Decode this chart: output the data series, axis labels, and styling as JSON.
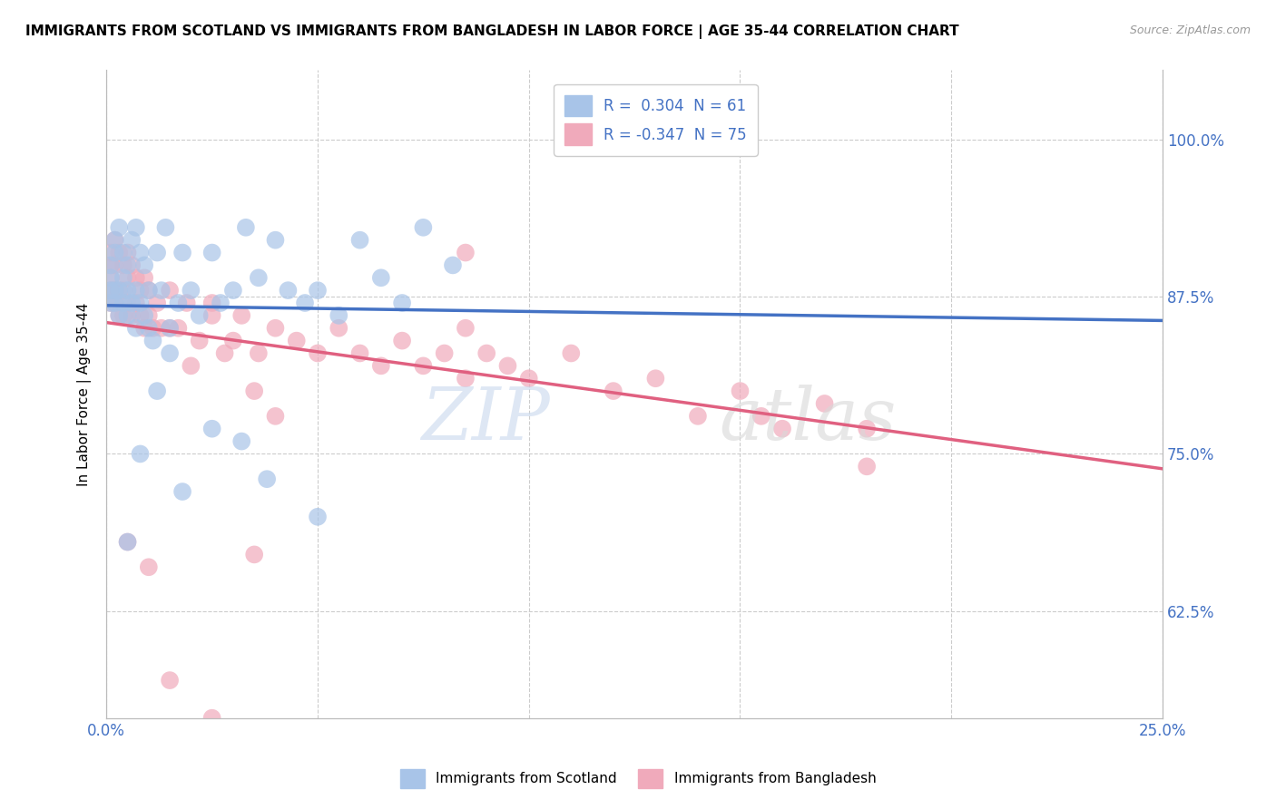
{
  "title": "IMMIGRANTS FROM SCOTLAND VS IMMIGRANTS FROM BANGLADESH IN LABOR FORCE | AGE 35-44 CORRELATION CHART",
  "source": "Source: ZipAtlas.com",
  "ylabel": "In Labor Force | Age 35-44",
  "xlim": [
    0.0,
    0.25
  ],
  "ylim": [
    0.54,
    1.055
  ],
  "xticks": [
    0.0,
    0.05,
    0.1,
    0.15,
    0.2,
    0.25
  ],
  "xticklabels": [
    "0.0%",
    "",
    "",
    "",
    "",
    "25.0%"
  ],
  "yticks": [
    0.625,
    0.75,
    0.875,
    1.0
  ],
  "yticklabels": [
    "62.5%",
    "75.0%",
    "87.5%",
    "100.0%"
  ],
  "r_scotland": 0.304,
  "n_scotland": 61,
  "r_bangladesh": -0.347,
  "n_bangladesh": 75,
  "scotland_color": "#a8c4e8",
  "bangladesh_color": "#f0aabb",
  "scotland_line_color": "#4472c4",
  "bangladesh_line_color": "#e06080",
  "legend_scotland": "Immigrants from Scotland",
  "legend_bangladesh": "Immigrants from Bangladesh",
  "scotland_x": [
    0.001,
    0.001,
    0.001,
    0.001,
    0.002,
    0.002,
    0.002,
    0.002,
    0.003,
    0.003,
    0.003,
    0.004,
    0.004,
    0.004,
    0.005,
    0.005,
    0.005,
    0.006,
    0.006,
    0.007,
    0.007,
    0.007,
    0.008,
    0.008,
    0.009,
    0.009,
    0.01,
    0.01,
    0.011,
    0.012,
    0.013,
    0.014,
    0.015,
    0.017,
    0.018,
    0.02,
    0.022,
    0.025,
    0.027,
    0.03,
    0.033,
    0.036,
    0.04,
    0.043,
    0.047,
    0.05,
    0.055,
    0.06,
    0.065,
    0.07,
    0.075,
    0.082,
    0.032,
    0.018,
    0.012,
    0.008,
    0.005,
    0.015,
    0.025,
    0.038,
    0.05
  ],
  "scotland_y": [
    0.87,
    0.88,
    0.89,
    0.9,
    0.87,
    0.88,
    0.91,
    0.92,
    0.86,
    0.88,
    0.93,
    0.87,
    0.89,
    0.91,
    0.86,
    0.88,
    0.9,
    0.87,
    0.92,
    0.85,
    0.88,
    0.93,
    0.87,
    0.91,
    0.86,
    0.9,
    0.85,
    0.88,
    0.84,
    0.91,
    0.88,
    0.93,
    0.85,
    0.87,
    0.91,
    0.88,
    0.86,
    0.91,
    0.87,
    0.88,
    0.93,
    0.89,
    0.92,
    0.88,
    0.87,
    0.88,
    0.86,
    0.92,
    0.89,
    0.87,
    0.93,
    0.9,
    0.76,
    0.72,
    0.8,
    0.75,
    0.68,
    0.83,
    0.77,
    0.73,
    0.7
  ],
  "bangladesh_x": [
    0.001,
    0.001,
    0.001,
    0.001,
    0.001,
    0.002,
    0.002,
    0.002,
    0.002,
    0.003,
    0.003,
    0.003,
    0.004,
    0.004,
    0.004,
    0.005,
    0.005,
    0.005,
    0.006,
    0.006,
    0.007,
    0.007,
    0.008,
    0.008,
    0.009,
    0.009,
    0.01,
    0.01,
    0.011,
    0.012,
    0.013,
    0.015,
    0.017,
    0.019,
    0.022,
    0.025,
    0.028,
    0.032,
    0.036,
    0.04,
    0.045,
    0.05,
    0.055,
    0.06,
    0.065,
    0.07,
    0.075,
    0.08,
    0.085,
    0.09,
    0.095,
    0.1,
    0.11,
    0.12,
    0.13,
    0.14,
    0.15,
    0.16,
    0.17,
    0.18,
    0.005,
    0.01,
    0.015,
    0.02,
    0.025,
    0.03,
    0.035,
    0.04,
    0.085,
    0.085,
    0.155,
    0.18,
    0.015,
    0.025,
    0.035
  ],
  "bangladesh_y": [
    0.87,
    0.88,
    0.89,
    0.9,
    0.91,
    0.87,
    0.88,
    0.9,
    0.92,
    0.86,
    0.88,
    0.91,
    0.86,
    0.88,
    0.9,
    0.87,
    0.89,
    0.91,
    0.86,
    0.9,
    0.87,
    0.89,
    0.86,
    0.88,
    0.85,
    0.89,
    0.86,
    0.88,
    0.85,
    0.87,
    0.85,
    0.88,
    0.85,
    0.87,
    0.84,
    0.86,
    0.83,
    0.86,
    0.83,
    0.85,
    0.84,
    0.83,
    0.85,
    0.83,
    0.82,
    0.84,
    0.82,
    0.83,
    0.81,
    0.83,
    0.82,
    0.81,
    0.83,
    0.8,
    0.81,
    0.78,
    0.8,
    0.77,
    0.79,
    0.77,
    0.68,
    0.66,
    0.85,
    0.82,
    0.87,
    0.84,
    0.8,
    0.78,
    0.91,
    0.85,
    0.78,
    0.74,
    0.57,
    0.54,
    0.67
  ]
}
